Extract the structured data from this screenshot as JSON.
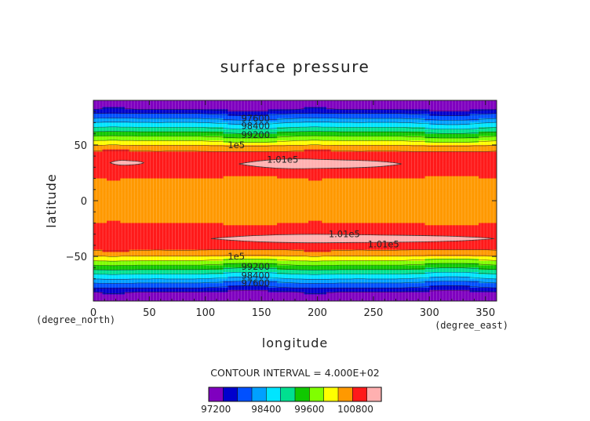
{
  "chart_data": {
    "type": "heatmap",
    "title": "surface pressure",
    "xlabel": "longitude",
    "ylabel": "latitude",
    "x_unit": "(degree_east)",
    "y_unit": "(degree_north)",
    "xlim": [
      0,
      360
    ],
    "ylim": [
      -90,
      90
    ],
    "x_ticks": [
      0,
      50,
      100,
      150,
      200,
      250,
      300,
      350
    ],
    "y_ticks": [
      -50,
      0,
      50
    ],
    "contour_interval_text": "CONTOUR INTERVAL = 4.000E+02",
    "levels": [
      97200,
      97600,
      98000,
      98400,
      98800,
      99200,
      99600,
      100000,
      100400,
      100800,
      101200
    ],
    "level_colors": [
      "#7f00bf",
      "#0000cd",
      "#0050ff",
      "#00a0ff",
      "#00e5ff",
      "#00e090",
      "#10c800",
      "#80ff00",
      "#ffff00",
      "#ff9900",
      "#ff1a1a",
      "#ffb0b0"
    ],
    "zonal_profile": {
      "lat": [
        90,
        82,
        80,
        78,
        76,
        74,
        72,
        70,
        68,
        66,
        64,
        62,
        60,
        58,
        56,
        54,
        52,
        50,
        48,
        46,
        40,
        34,
        28,
        20,
        17,
        0,
        -17,
        -20,
        -28,
        -34,
        -40,
        -46,
        -48,
        -50,
        -52,
        -54,
        -56,
        -58,
        -60,
        -62,
        -64,
        -66,
        -68,
        -70,
        -72,
        -74,
        -76,
        -78,
        -80,
        -82,
        -90
      ],
      "pressure": [
        97000,
        97150,
        97400,
        97600,
        97750,
        97950,
        98150,
        98400,
        98550,
        98750,
        98950,
        99150,
        99350,
        99550,
        99750,
        99950,
        100150,
        100350,
        100550,
        100750,
        100900,
        100950,
        100880,
        100800,
        100750,
        100650,
        100750,
        100800,
        100880,
        100950,
        100900,
        100750,
        100550,
        100350,
        100150,
        99950,
        99750,
        99550,
        99350,
        99150,
        98950,
        98750,
        98550,
        98400,
        98150,
        97950,
        97750,
        97600,
        97400,
        97150,
        97000
      ]
    },
    "high_pressure_cells": [
      {
        "lon_range": [
          15,
          45
        ],
        "lat": 34,
        "half_width_deg": 2
      },
      {
        "lon_range": [
          130,
          275
        ],
        "lat": 33,
        "half_width_deg": 4
      },
      {
        "lon_range": [
          105,
          358
        ],
        "lat": -34,
        "half_width_deg": 3.5
      }
    ],
    "contour_labels": [
      {
        "text": "97600",
        "lon": 132,
        "lat": 74
      },
      {
        "text": "98400",
        "lon": 132,
        "lat": 67
      },
      {
        "text": "99200",
        "lon": 132,
        "lat": 59
      },
      {
        "text": "1e5",
        "lon": 120,
        "lat": 50
      },
      {
        "text": "1.01e5",
        "lon": 155,
        "lat": 37
      },
      {
        "text": "1.01e5",
        "lon": 210,
        "lat": -30
      },
      {
        "text": "1.01e5",
        "lon": 245,
        "lat": -39
      },
      {
        "text": "1e5",
        "lon": 120,
        "lat": -50
      },
      {
        "text": "99200",
        "lon": 132,
        "lat": -59
      },
      {
        "text": "98400",
        "lon": 132,
        "lat": -67
      },
      {
        "text": "97600",
        "lon": 132,
        "lat": -74
      }
    ],
    "colorbar_labels": [
      97200,
      98400,
      99600,
      100800
    ]
  }
}
